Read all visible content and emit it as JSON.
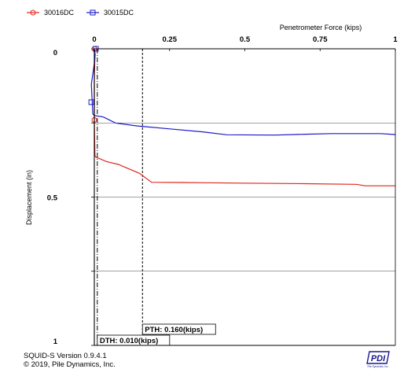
{
  "chart_data": {
    "type": "line",
    "xlabel": "Penetrometer Force (kips)",
    "ylabel": "Displacement (in)",
    "xlim": [
      0,
      1
    ],
    "ylim": [
      0,
      1
    ],
    "x_axis_position": "top",
    "y_inverted": true,
    "x_ticks": [
      "0",
      "0.25",
      "0.5",
      "0.75",
      "1"
    ],
    "y_ticks": [
      "0",
      "0.5",
      "1"
    ],
    "grid": true,
    "legend_position": "top-left",
    "series": [
      {
        "name": "30016DC",
        "color": "#e0261b",
        "marker": "circle",
        "points": [
          [
            0,
            0
          ],
          [
            0.002,
            0.02
          ],
          [
            0.0,
            0.1
          ],
          [
            0.0,
            0.24
          ],
          [
            0.002,
            0.36
          ],
          [
            0.005,
            0.365
          ],
          [
            0.04,
            0.38
          ],
          [
            0.08,
            0.39
          ],
          [
            0.15,
            0.42
          ],
          [
            0.19,
            0.45
          ],
          [
            0.3,
            0.451
          ],
          [
            0.5,
            0.453
          ],
          [
            0.7,
            0.455
          ],
          [
            0.87,
            0.457
          ],
          [
            0.9,
            0.462
          ],
          [
            1.0,
            0.462
          ]
        ],
        "marker_points": [
          [
            0,
            0
          ],
          [
            0.0,
            0.24
          ]
        ]
      },
      {
        "name": "30015DC",
        "color": "#1a1ac8",
        "marker": "square",
        "points": [
          [
            0,
            0
          ],
          [
            0.003,
            0.02
          ],
          [
            0.0,
            0.05
          ],
          [
            -0.01,
            0.12
          ],
          [
            -0.005,
            0.22
          ],
          [
            0.0,
            0.225
          ],
          [
            0.03,
            0.23
          ],
          [
            0.07,
            0.25
          ],
          [
            0.14,
            0.26
          ],
          [
            0.25,
            0.27
          ],
          [
            0.36,
            0.28
          ],
          [
            0.44,
            0.29
          ],
          [
            0.6,
            0.291
          ],
          [
            0.7,
            0.288
          ],
          [
            0.79,
            0.286
          ],
          [
            0.95,
            0.286
          ],
          [
            1.0,
            0.289
          ]
        ],
        "marker_points": [
          [
            0.005,
            0
          ],
          [
            -0.01,
            0.18
          ]
        ]
      }
    ],
    "thresholds": [
      {
        "label": "DTH: 0.010(kips)",
        "value": 0.01,
        "style": "dash-dot"
      },
      {
        "label": "PTH: 0.160(kips)",
        "value": 0.16,
        "style": "dashed"
      }
    ]
  },
  "footer": {
    "version": "SQUID-S Version 0.9.4.1",
    "copyright": "© 2019, Pile Dynamics, Inc."
  },
  "logo": {
    "text": "PDI",
    "subtext": "Pile Dynamics, Inc."
  }
}
